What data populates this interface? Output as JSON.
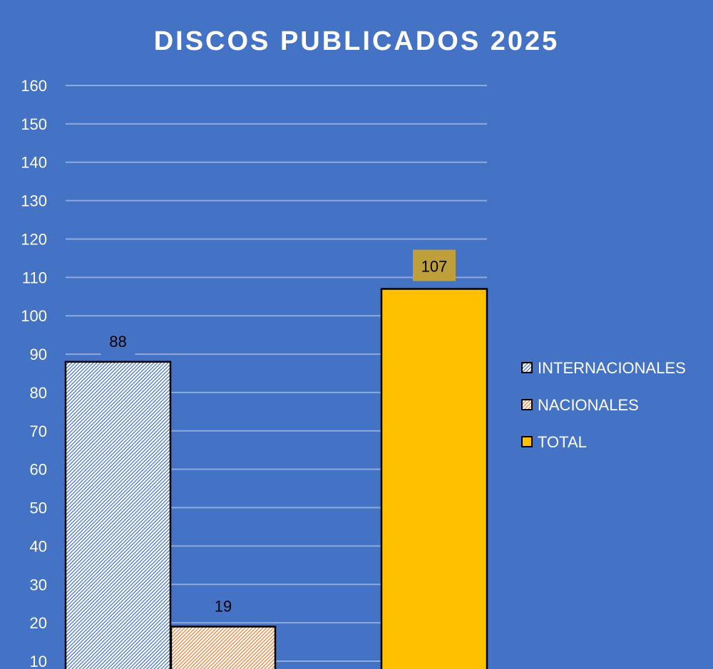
{
  "chart_data": {
    "type": "bar",
    "title": "DISCOS PUBLICADOS 2025",
    "xlabel": "",
    "ylabel": "",
    "ylim": [
      10,
      160
    ],
    "yticks": [
      10,
      20,
      30,
      40,
      50,
      60,
      70,
      80,
      90,
      100,
      110,
      120,
      130,
      140,
      150,
      160
    ],
    "grid": true,
    "legend_position": "right",
    "series": [
      {
        "name": "INTERNACIONALES",
        "value": 88,
        "pattern": "hatch-blue"
      },
      {
        "name": "NACIONALES",
        "value": 19,
        "pattern": "hatch-orange"
      },
      {
        "name": "TOTAL",
        "value": 107,
        "color": "#ffc000",
        "label_bg": "#bf9f3a"
      }
    ],
    "colors": {
      "background": "#4472c4",
      "gridline": "#8faadc",
      "text": "#ffffff",
      "hatch_blue": "#4472c4",
      "hatch_orange": "#ed7d31",
      "total_fill": "#ffc000",
      "outline": "#000000"
    }
  }
}
